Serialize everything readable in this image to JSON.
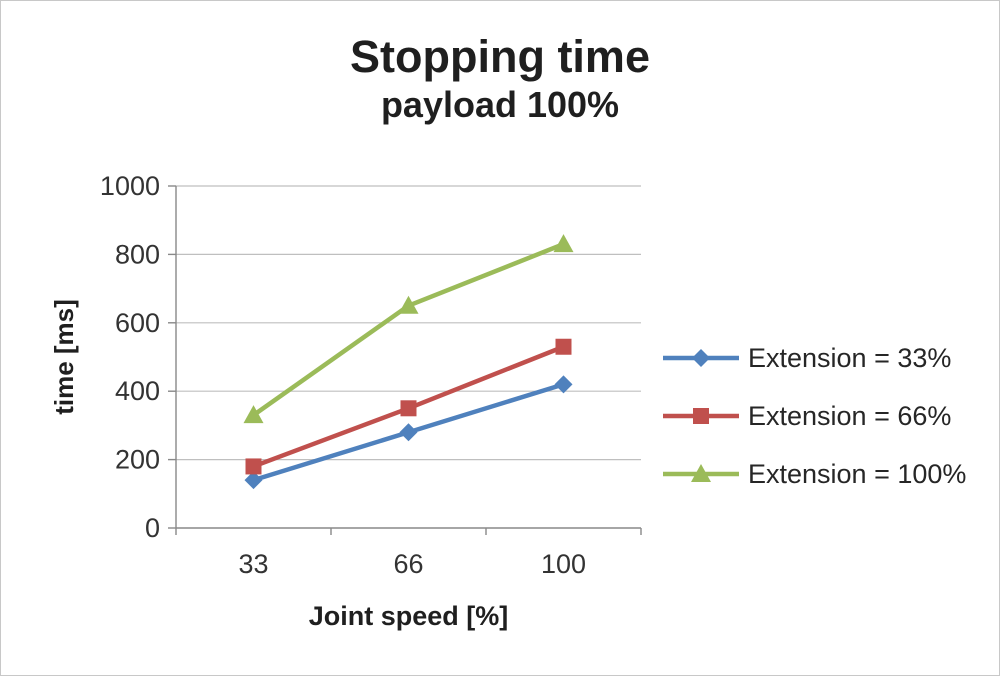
{
  "chart_data": {
    "type": "line",
    "title": "Stopping time",
    "subtitle": "payload 100%",
    "xlabel": "Joint speed [%]",
    "ylabel": "time [ms]",
    "categories": [
      "33",
      "66",
      "100"
    ],
    "series": [
      {
        "name": "Extension = 33%",
        "values": [
          140,
          280,
          420
        ],
        "color": "#4F81BD",
        "marker": "diamond"
      },
      {
        "name": "Extension = 66%",
        "values": [
          180,
          350,
          530
        ],
        "color": "#C0504D",
        "marker": "square"
      },
      {
        "name": "Extension = 100%",
        "values": [
          330,
          650,
          830
        ],
        "color": "#9BBB59",
        "marker": "triangle"
      }
    ],
    "ylim": [
      0,
      1000
    ],
    "yticks": [
      0,
      200,
      400,
      600,
      800,
      1000
    ],
    "grid": true,
    "legend_position": "right"
  },
  "colors": {
    "grid": "#bfbfbf",
    "axis": "#898989",
    "tick_text": "#333333",
    "title_text": "#1f1f1f",
    "background": "#ffffff",
    "frame_border": "#c8c8c8"
  }
}
